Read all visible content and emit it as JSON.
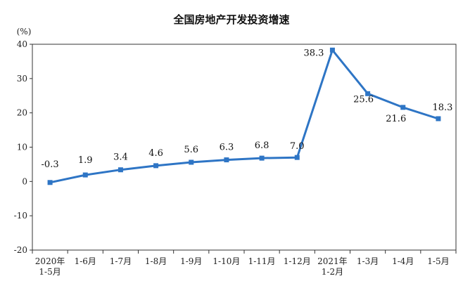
{
  "chart_data": {
    "type": "line",
    "title": "全国房地产开发投资增速",
    "ylabel": "(%)",
    "xlabel": "",
    "ylim": [
      -20,
      40
    ],
    "yticks": [
      40,
      30,
      20,
      10,
      0,
      -10,
      -20
    ],
    "grid": false,
    "legend": "none",
    "categories": [
      [
        "2020年",
        "1-5月"
      ],
      [
        "1-6月"
      ],
      [
        "1-7月"
      ],
      [
        "1-8月"
      ],
      [
        "1-9月"
      ],
      [
        "1-10月"
      ],
      [
        "1-11月"
      ],
      [
        "1-12月"
      ],
      [
        "2021年",
        "1-2月"
      ],
      [
        "1-3月"
      ],
      [
        "1-4月"
      ],
      [
        "1-5月"
      ]
    ],
    "series": [
      {
        "values": [
          -0.3,
          1.9,
          3.4,
          4.6,
          5.6,
          6.3,
          6.8,
          7.0,
          38.3,
          25.6,
          21.6,
          18.3
        ],
        "labels": [
          "-0.3",
          "1.9",
          "3.4",
          "4.6",
          "5.6",
          "6.3",
          "6.8",
          "7.0",
          "38.3",
          "25.6",
          "21.6",
          "18.3"
        ],
        "color": "#2e75c5"
      }
    ],
    "axis_color": "#333333"
  }
}
